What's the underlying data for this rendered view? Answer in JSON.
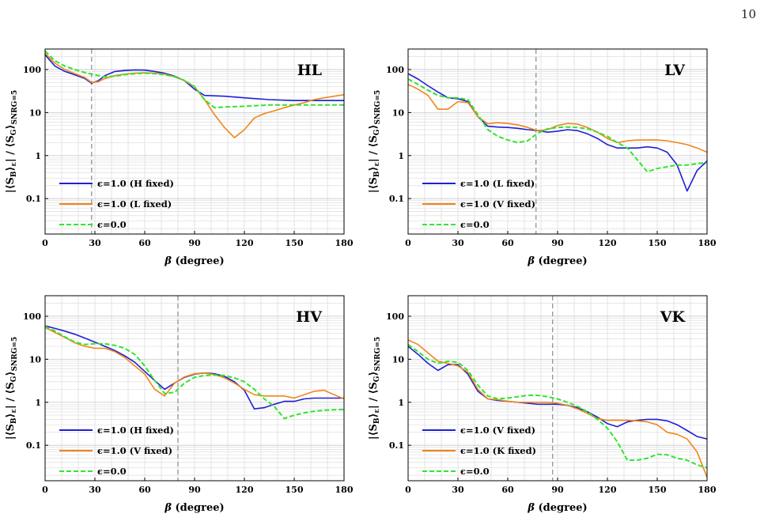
{
  "page_number": "10",
  "chart_data": [
    {
      "type": "line",
      "panel_label": "HL",
      "xlabel": "β (degree)",
      "ylabel": "|⟨S_B⟩_ε| / ⟨S_G⟩_SNR_G=5",
      "xlim": [
        0,
        180
      ],
      "ylim": [
        0.015,
        300
      ],
      "yscale": "log",
      "xticks": [
        0,
        30,
        60,
        90,
        120,
        150,
        180
      ],
      "yticks": [
        0.1,
        1,
        10,
        100
      ],
      "ytick_labels": [
        "0.1",
        "1",
        "10",
        "100"
      ],
      "vline": 28,
      "grid": true,
      "legend_position": "bottom-left",
      "series": [
        {
          "name": "ϵ=1.0 (H fixed)",
          "color": "#1f1fd6",
          "style": "solid",
          "x": [
            0,
            6,
            12,
            18,
            24,
            28,
            32,
            36,
            42,
            48,
            54,
            60,
            66,
            72,
            78,
            84,
            90,
            96,
            108,
            120,
            135,
            150,
            165,
            180
          ],
          "y": [
            220,
            120,
            90,
            75,
            62,
            48,
            55,
            72,
            90,
            95,
            98,
            97,
            90,
            82,
            70,
            55,
            35,
            25,
            24,
            22,
            20,
            19,
            19,
            19
          ]
        },
        {
          "name": "ϵ=1.0 (L fixed)",
          "color": "#f0861a",
          "style": "solid",
          "x": [
            0,
            6,
            12,
            18,
            24,
            28,
            32,
            36,
            42,
            48,
            54,
            60,
            66,
            72,
            78,
            84,
            90,
            96,
            102,
            108,
            114,
            120,
            126,
            132,
            138,
            144,
            150,
            156,
            162,
            168,
            174,
            180
          ],
          "y": [
            240,
            140,
            100,
            80,
            65,
            50,
            52,
            62,
            72,
            78,
            82,
            84,
            82,
            78,
            68,
            55,
            40,
            20,
            9,
            4.5,
            2.6,
            4,
            7.5,
            9.5,
            11,
            13,
            15,
            17,
            20,
            22,
            24,
            26
          ]
        },
        {
          "name": "ϵ=0.0",
          "color": "#2fe62f",
          "style": "dashed",
          "x": [
            0,
            6,
            12,
            18,
            24,
            30,
            36,
            42,
            48,
            54,
            60,
            66,
            72,
            78,
            84,
            90,
            96,
            102,
            108,
            120,
            135,
            150,
            165,
            180
          ],
          "y": [
            270,
            160,
            120,
            100,
            85,
            75,
            68,
            70,
            76,
            80,
            82,
            80,
            76,
            68,
            56,
            40,
            20,
            13,
            13.5,
            14,
            15,
            15,
            15,
            15
          ]
        }
      ]
    },
    {
      "type": "line",
      "panel_label": "LV",
      "xlabel": "β (degree)",
      "ylabel": "|⟨S_B⟩_ε| / ⟨S_G⟩_SNR_G=5",
      "xlim": [
        0,
        180
      ],
      "ylim": [
        0.015,
        300
      ],
      "yscale": "log",
      "xticks": [
        0,
        30,
        60,
        90,
        120,
        150,
        180
      ],
      "yticks": [
        0.1,
        1,
        10,
        100
      ],
      "ytick_labels": [
        "0.1",
        "1",
        "10",
        "100"
      ],
      "vline": 77,
      "grid": true,
      "legend_position": "bottom-left",
      "series": [
        {
          "name": "ϵ=1.0 (L fixed)",
          "color": "#1f1fd6",
          "style": "solid",
          "x": [
            0,
            6,
            12,
            18,
            24,
            30,
            36,
            42,
            48,
            54,
            60,
            66,
            72,
            78,
            84,
            90,
            96,
            102,
            108,
            114,
            120,
            126,
            132,
            138,
            144,
            150,
            156,
            162,
            168,
            174,
            180
          ],
          "y": [
            80,
            60,
            42,
            30,
            22,
            21,
            18,
            8,
            4.8,
            4.6,
            4.5,
            4.3,
            4.0,
            3.8,
            3.5,
            3.7,
            4.0,
            3.8,
            3.2,
            2.5,
            1.8,
            1.5,
            1.5,
            1.5,
            1.6,
            1.5,
            1.2,
            0.6,
            0.15,
            0.45,
            0.75
          ]
        },
        {
          "name": "ϵ=1.0 (V fixed)",
          "color": "#f0861a",
          "style": "solid",
          "x": [
            0,
            6,
            12,
            18,
            24,
            30,
            36,
            42,
            48,
            54,
            60,
            66,
            72,
            78,
            84,
            90,
            96,
            102,
            108,
            114,
            120,
            126,
            132,
            138,
            144,
            150,
            156,
            162,
            168,
            174,
            180
          ],
          "y": [
            45,
            35,
            25,
            12,
            12,
            18,
            17,
            8,
            5.5,
            5.8,
            5.6,
            5.2,
            4.5,
            3.8,
            4.0,
            5.0,
            5.6,
            5.4,
            4.5,
            3.5,
            2.5,
            2.0,
            2.2,
            2.3,
            2.3,
            2.3,
            2.2,
            2.0,
            1.8,
            1.5,
            1.2
          ]
        },
        {
          "name": "ϵ=0.0",
          "color": "#2fe62f",
          "style": "dashed",
          "x": [
            0,
            6,
            12,
            18,
            24,
            30,
            36,
            42,
            48,
            54,
            60,
            66,
            72,
            78,
            84,
            90,
            96,
            102,
            108,
            114,
            120,
            126,
            132,
            138,
            144,
            150,
            156,
            162,
            168,
            174,
            180
          ],
          "y": [
            60,
            45,
            33,
            25,
            22,
            22,
            20,
            9,
            4.0,
            2.8,
            2.3,
            2.0,
            2.2,
            3.3,
            4.2,
            4.5,
            4.6,
            4.5,
            4.2,
            3.5,
            2.8,
            2.0,
            1.5,
            0.8,
            0.42,
            0.5,
            0.55,
            0.6,
            0.6,
            0.65,
            0.68
          ]
        }
      ]
    },
    {
      "type": "line",
      "panel_label": "HV",
      "xlabel": "β (degree)",
      "ylabel": "|⟨S_B⟩_ε| / ⟨S_G⟩_SNR_G=5",
      "xlim": [
        0,
        180
      ],
      "ylim": [
        0.015,
        300
      ],
      "yscale": "log",
      "xticks": [
        0,
        30,
        60,
        90,
        120,
        150,
        180
      ],
      "yticks": [
        0.1,
        1,
        10,
        100
      ],
      "ytick_labels": [
        "0.1",
        "1",
        "10",
        "100"
      ],
      "vline": 80,
      "grid": true,
      "legend_position": "bottom-left",
      "series": [
        {
          "name": "ϵ=1.0 (H fixed)",
          "color": "#1f1fd6",
          "style": "solid",
          "x": [
            0,
            6,
            12,
            18,
            24,
            30,
            36,
            42,
            48,
            54,
            60,
            66,
            72,
            78,
            84,
            90,
            96,
            102,
            108,
            114,
            120,
            126,
            132,
            138,
            144,
            150,
            156,
            162,
            168,
            174,
            180
          ],
          "y": [
            60,
            52,
            45,
            38,
            31,
            25,
            20,
            16,
            12,
            8.5,
            5.2,
            3.2,
            2.0,
            2.8,
            3.8,
            4.5,
            4.8,
            4.6,
            4.0,
            3.0,
            1.9,
            0.7,
            0.75,
            0.9,
            1.05,
            1.05,
            1.2,
            1.25,
            1.25,
            1.25,
            1.25
          ]
        },
        {
          "name": "ϵ=1.0 (V fixed)",
          "color": "#f0861a",
          "style": "solid",
          "x": [
            0,
            6,
            12,
            18,
            24,
            30,
            36,
            42,
            48,
            54,
            60,
            66,
            72,
            78,
            84,
            90,
            96,
            102,
            108,
            114,
            120,
            126,
            132,
            138,
            144,
            150,
            156,
            162,
            168,
            174,
            180
          ],
          "y": [
            55,
            42,
            32,
            24,
            20,
            18,
            18,
            15,
            11,
            7,
            4.5,
            2.0,
            1.4,
            2.8,
            3.9,
            4.6,
            4.8,
            4.4,
            3.7,
            2.8,
            2.0,
            1.5,
            1.4,
            1.4,
            1.4,
            1.25,
            1.5,
            1.8,
            1.9,
            1.5,
            1.2
          ]
        },
        {
          "name": "ϵ=0.0",
          "color": "#2fe62f",
          "style": "dashed",
          "x": [
            0,
            6,
            12,
            18,
            24,
            30,
            36,
            42,
            48,
            54,
            60,
            66,
            72,
            78,
            84,
            90,
            96,
            102,
            108,
            114,
            120,
            126,
            132,
            138,
            144,
            150,
            156,
            162,
            168,
            174,
            180
          ],
          "y": [
            58,
            45,
            33,
            25,
            22,
            23,
            23,
            21,
            18,
            13,
            7,
            3.2,
            1.6,
            1.7,
            2.8,
            3.8,
            4.2,
            4.3,
            4.2,
            3.7,
            3.0,
            2.0,
            1.2,
            0.8,
            0.42,
            0.5,
            0.57,
            0.62,
            0.65,
            0.67,
            0.68
          ]
        }
      ]
    },
    {
      "type": "line",
      "panel_label": "VK",
      "xlabel": "β (degree)",
      "ylabel": "|⟨S_B⟩_ε| / ⟨S_G⟩_SNR_G=5",
      "xlim": [
        0,
        180
      ],
      "ylim": [
        0.015,
        300
      ],
      "yscale": "log",
      "xticks": [
        0,
        30,
        60,
        90,
        120,
        150,
        180
      ],
      "yticks": [
        0.1,
        1,
        10,
        100
      ],
      "ytick_labels": [
        "0.1",
        "1",
        "10",
        "100"
      ],
      "vline": 87,
      "grid": true,
      "legend_position": "bottom-left",
      "series": [
        {
          "name": "ϵ=1.0 (V fixed)",
          "color": "#1f1fd6",
          "style": "solid",
          "x": [
            0,
            6,
            12,
            18,
            24,
            30,
            36,
            42,
            48,
            54,
            60,
            66,
            72,
            78,
            84,
            90,
            96,
            102,
            108,
            114,
            120,
            126,
            132,
            138,
            144,
            150,
            156,
            162,
            168,
            174,
            180
          ],
          "y": [
            20,
            13,
            8,
            5.5,
            7.5,
            7.5,
            4.5,
            1.8,
            1.2,
            1.1,
            1.05,
            1.0,
            0.95,
            0.9,
            0.9,
            0.9,
            0.85,
            0.75,
            0.6,
            0.45,
            0.32,
            0.27,
            0.35,
            0.38,
            0.4,
            0.4,
            0.37,
            0.3,
            0.22,
            0.16,
            0.14
          ]
        },
        {
          "name": "ϵ=1.0 (K fixed)",
          "color": "#f0861a",
          "style": "solid",
          "x": [
            0,
            6,
            12,
            18,
            24,
            30,
            36,
            42,
            48,
            54,
            60,
            66,
            72,
            78,
            84,
            90,
            96,
            102,
            108,
            114,
            120,
            126,
            132,
            138,
            144,
            150,
            156,
            162,
            168,
            174,
            180
          ],
          "y": [
            28,
            22,
            14,
            9,
            8,
            7,
            5,
            2.0,
            1.2,
            1.15,
            1.05,
            1.0,
            1.0,
            1.0,
            1.0,
            0.95,
            0.85,
            0.7,
            0.55,
            0.42,
            0.38,
            0.38,
            0.38,
            0.37,
            0.35,
            0.3,
            0.2,
            0.18,
            0.14,
            0.07,
            0.018
          ]
        },
        {
          "name": "ϵ=0.0",
          "color": "#2fe62f",
          "style": "dashed",
          "x": [
            0,
            6,
            12,
            18,
            24,
            30,
            36,
            42,
            48,
            54,
            60,
            66,
            72,
            78,
            84,
            90,
            96,
            102,
            108,
            114,
            120,
            126,
            132,
            138,
            144,
            150,
            156,
            162,
            168,
            174,
            180
          ],
          "y": [
            22,
            15,
            10,
            8,
            9,
            8.5,
            5.5,
            2.5,
            1.4,
            1.2,
            1.25,
            1.35,
            1.45,
            1.45,
            1.35,
            1.2,
            1.0,
            0.8,
            0.6,
            0.4,
            0.25,
            0.12,
            0.045,
            0.045,
            0.05,
            0.062,
            0.06,
            0.05,
            0.045,
            0.035,
            0.03
          ]
        }
      ]
    }
  ]
}
